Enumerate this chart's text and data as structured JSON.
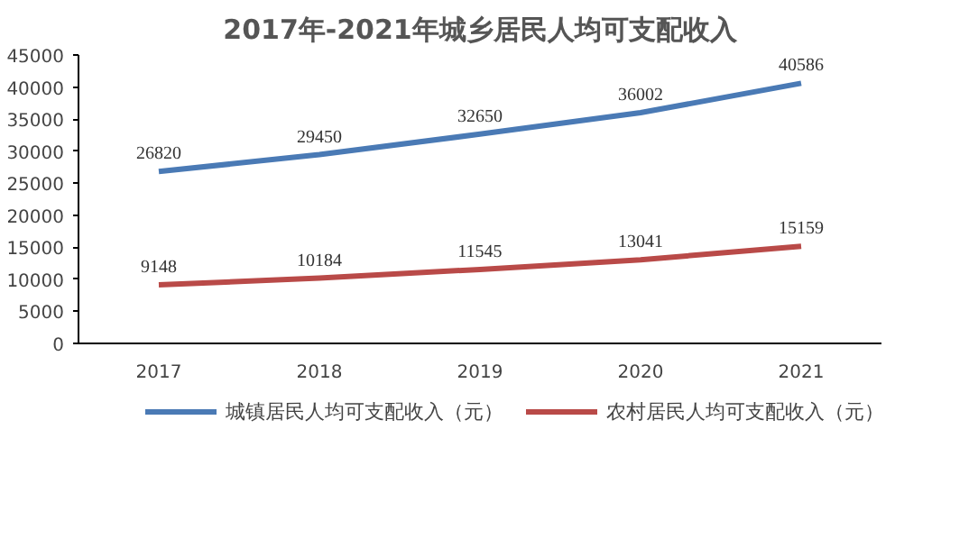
{
  "chart_data": {
    "type": "line",
    "title": "2017年-2021年城乡居民人均可支配收入",
    "categories": [
      "2017",
      "2018",
      "2019",
      "2020",
      "2021"
    ],
    "series": [
      {
        "name": "城镇居民人均可支配收入（元）",
        "color": "#4a7ab5",
        "values": [
          26820,
          29450,
          32650,
          36002,
          40586
        ]
      },
      {
        "name": "农村居民人均可支配收入（元）",
        "color": "#b94a48",
        "values": [
          9148,
          10184,
          11545,
          13041,
          15159
        ]
      }
    ],
    "ylim": [
      0,
      45000
    ],
    "yticks": [
      0,
      5000,
      10000,
      15000,
      20000,
      25000,
      30000,
      35000,
      40000,
      45000
    ],
    "data_labels": true,
    "grid": false,
    "legend": "bottom",
    "marker": "none",
    "line_style": "solid"
  }
}
